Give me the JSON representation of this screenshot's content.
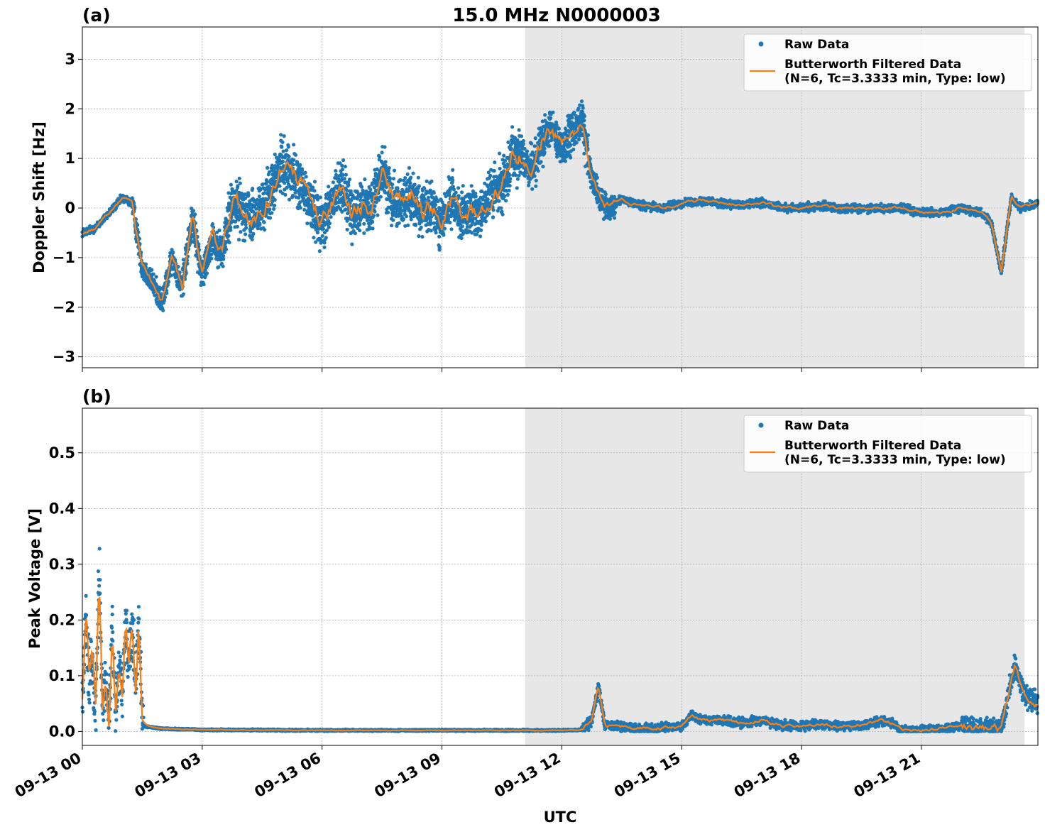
{
  "figure": {
    "title": "15.0 MHz N0000003",
    "xlabel": "UTC"
  },
  "colors": {
    "raw": "#1f77b4",
    "filtered": "#ff7f0e",
    "shade": "#e7e7e7",
    "grid": "#b0b0b0"
  },
  "chart_data": [
    {
      "type": "scatter",
      "panel_label": "(a)",
      "xlabel": "",
      "ylabel": "Doppler Shift [Hz]",
      "xlim": [
        "09-13 00:00",
        "09-13 23:55"
      ],
      "ylim": [
        -3.22,
        3.65
      ],
      "yticks": [
        -3,
        -2,
        -1,
        0,
        1,
        2,
        3
      ],
      "ytick_labels": [
        "−3",
        "−2",
        "−1",
        "0",
        "1",
        "2",
        "3"
      ],
      "grid": true,
      "legend_position": "top-right",
      "shaded_region": [
        "09-13 11:05",
        "09-13 23:35"
      ],
      "series": [
        {
          "name": "Raw Data",
          "style": "points",
          "color": "#1f77b4",
          "x": [
            "00:00",
            "00:20",
            "00:40",
            "01:00",
            "01:15",
            "01:30",
            "01:45",
            "02:00",
            "02:15",
            "02:30",
            "02:45",
            "03:00",
            "03:15",
            "03:30",
            "03:45",
            "04:00",
            "04:15",
            "04:30",
            "04:45",
            "05:00",
            "05:15",
            "05:30",
            "05:45",
            "06:00",
            "06:15",
            "06:30",
            "06:45",
            "07:00",
            "07:15",
            "07:30",
            "07:45",
            "08:00",
            "08:15",
            "08:30",
            "08:45",
            "09:00",
            "09:15",
            "09:30",
            "09:45",
            "10:00",
            "10:15",
            "10:30",
            "10:45",
            "11:00",
            "11:15",
            "11:30",
            "11:45",
            "12:00",
            "12:15",
            "12:30",
            "12:45",
            "13:00",
            "13:15",
            "13:30",
            "13:45",
            "14:00",
            "14:30",
            "15:00",
            "15:30",
            "16:00",
            "16:30",
            "17:00",
            "17:30",
            "18:00",
            "18:30",
            "19:00",
            "19:30",
            "20:00",
            "20:30",
            "21:00",
            "21:30",
            "22:00",
            "22:30",
            "22:45",
            "23:00",
            "23:15",
            "23:30",
            "23:55"
          ],
          "y": [
            -0.5,
            -0.4,
            -0.1,
            0.2,
            0.1,
            -1.2,
            -1.5,
            -1.9,
            -1.0,
            -1.6,
            -0.2,
            -1.4,
            -0.6,
            -0.9,
            0.1,
            0.0,
            -0.2,
            0.0,
            0.4,
            0.9,
            0.7,
            0.4,
            0.0,
            -0.3,
            0.1,
            0.5,
            -0.2,
            0.1,
            0.0,
            0.8,
            0.2,
            0.1,
            0.3,
            -0.1,
            0.0,
            -0.3,
            0.2,
            -0.2,
            -0.1,
            0.0,
            0.3,
            0.4,
            1.1,
            1.0,
            0.8,
            1.3,
            1.6,
            1.2,
            1.5,
            1.8,
            0.6,
            0.1,
            0.0,
            0.2,
            0.1,
            0.05,
            0.0,
            0.1,
            0.15,
            0.1,
            0.05,
            0.1,
            0.0,
            0.0,
            0.05,
            0.0,
            0.0,
            0.0,
            0.0,
            -0.1,
            -0.1,
            0.0,
            -0.1,
            -0.3,
            -1.3,
            0.2,
            0.0,
            0.1
          ]
        },
        {
          "name": "Butterworth Filtered Data\n(N=6, Tc=3.3333 min, Type: low)",
          "style": "line",
          "color": "#ff7f0e"
        }
      ]
    },
    {
      "type": "scatter",
      "panel_label": "(b)",
      "xlabel": "UTC",
      "ylabel": "Peak Voltage [V]",
      "xlim": [
        "09-13 00:00",
        "09-13 23:55"
      ],
      "ylim": [
        -0.025,
        0.58
      ],
      "yticks": [
        0.0,
        0.1,
        0.2,
        0.3,
        0.4,
        0.5
      ],
      "ytick_labels": [
        "0.0",
        "0.1",
        "0.2",
        "0.3",
        "0.4",
        "0.5"
      ],
      "xtick_labels": [
        "09-13 00",
        "09-13 03",
        "09-13 06",
        "09-13 09",
        "09-13 12",
        "09-13 15",
        "09-13 18",
        "09-13 21"
      ],
      "grid": true,
      "legend_position": "top-right",
      "shaded_region": [
        "09-13 11:05",
        "09-13 23:35"
      ],
      "series": [
        {
          "name": "Raw Data",
          "style": "points",
          "color": "#1f77b4",
          "x": [
            "00:00",
            "00:05",
            "00:10",
            "00:15",
            "00:20",
            "00:25",
            "00:30",
            "00:35",
            "00:40",
            "00:45",
            "00:50",
            "00:55",
            "01:00",
            "01:05",
            "01:10",
            "01:15",
            "01:20",
            "01:25",
            "01:30",
            "02:00",
            "03:00",
            "06:00",
            "09:00",
            "12:00",
            "12:30",
            "12:45",
            "12:55",
            "13:05",
            "13:30",
            "14:00",
            "14:30",
            "15:00",
            "15:15",
            "15:30",
            "16:00",
            "16:30",
            "17:00",
            "17:30",
            "18:00",
            "18:30",
            "19:00",
            "19:30",
            "20:00",
            "20:15",
            "20:30",
            "21:00",
            "21:30",
            "22:00",
            "22:30",
            "23:00",
            "23:10",
            "23:20",
            "23:30",
            "23:40",
            "23:55"
          ],
          "y": [
            0.05,
            0.2,
            0.1,
            0.14,
            0.04,
            0.3,
            0.05,
            0.08,
            0.02,
            0.18,
            0.03,
            0.12,
            0.05,
            0.2,
            0.12,
            0.18,
            0.08,
            0.2,
            0.01,
            0.005,
            0.003,
            0.002,
            0.002,
            0.002,
            0.003,
            0.02,
            0.08,
            0.01,
            0.008,
            0.005,
            0.006,
            0.01,
            0.03,
            0.02,
            0.02,
            0.015,
            0.02,
            0.01,
            0.01,
            0.012,
            0.01,
            0.01,
            0.02,
            0.015,
            0.002,
            0.002,
            0.005,
            0.01,
            0.005,
            0.003,
            0.06,
            0.12,
            0.08,
            0.06,
            0.05
          ]
        },
        {
          "name": "Butterworth Filtered Data\n(N=6, Tc=3.3333 min, Type: low)",
          "style": "line",
          "color": "#ff7f0e"
        }
      ]
    }
  ]
}
